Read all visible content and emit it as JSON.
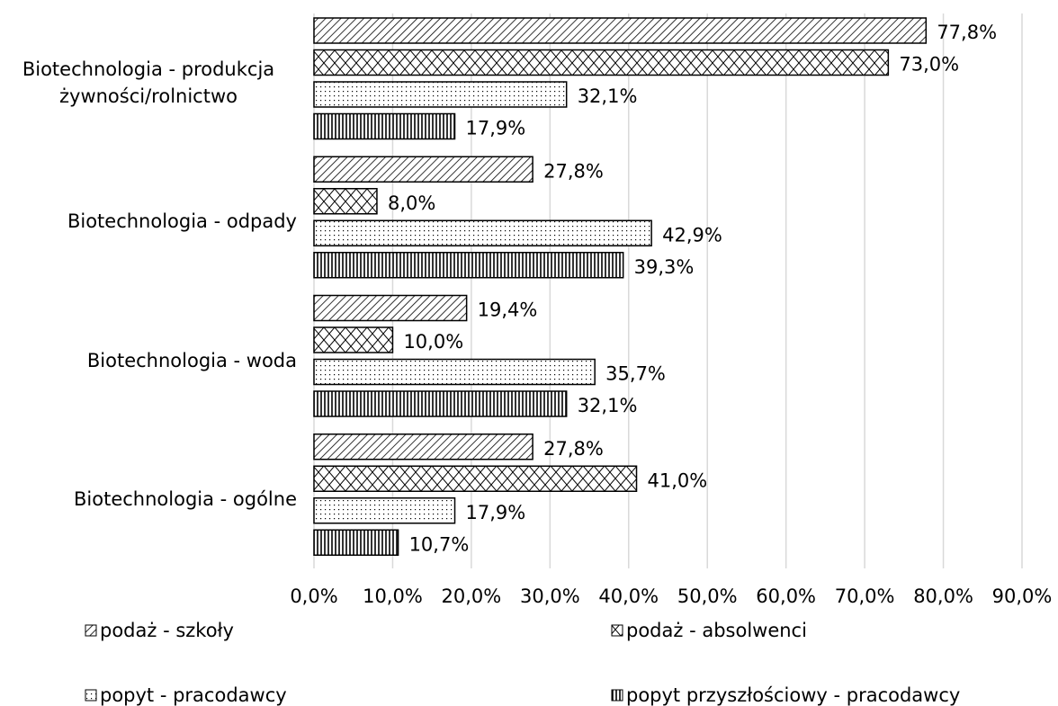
{
  "chart_data": {
    "type": "bar",
    "orientation": "horizontal",
    "categories": [
      "Biotechnologia - produkcja żywności/rolnictwo",
      "Biotechnologia - odpady",
      "Biotechnologia - woda",
      "Biotechnologia - ogólne"
    ],
    "series": [
      {
        "name": "podaż - szkoły",
        "color": "#000000",
        "pattern": "diagonal",
        "values": [
          77.8,
          27.8,
          19.4,
          27.8
        ],
        "value_labels": [
          "77,8%",
          "27,8%",
          "19,4%",
          "27,8%"
        ]
      },
      {
        "name": "podaż - absolwenci",
        "color": "#000000",
        "pattern": "zigzag",
        "values": [
          73.0,
          8.0,
          10.0,
          41.0
        ],
        "value_labels": [
          "73,0%",
          "8,0%",
          "10,0%",
          "41,0%"
        ]
      },
      {
        "name": "popyt - pracodawcy",
        "color": "#000000",
        "pattern": "dots",
        "values": [
          32.1,
          42.9,
          35.7,
          17.9
        ],
        "value_labels": [
          "32,1%",
          "42,9%",
          "35,7%",
          "17,9%"
        ]
      },
      {
        "name": "popyt przyszłościowy - pracodawcy",
        "color": "#000000",
        "pattern": "vertical",
        "values": [
          17.9,
          39.3,
          32.1,
          10.7
        ],
        "value_labels": [
          "17,9%",
          "39,3%",
          "32,1%",
          "10,7%"
        ]
      }
    ],
    "xlim": [
      0,
      90
    ],
    "xticks": [
      {
        "value": 0,
        "label": "0,0%"
      },
      {
        "value": 10,
        "label": "10,0%"
      },
      {
        "value": 20,
        "label": "20,0%"
      },
      {
        "value": 30,
        "label": "30,0%"
      },
      {
        "value": 40,
        "label": "40,0%"
      },
      {
        "value": 50,
        "label": "50,0%"
      },
      {
        "value": 60,
        "label": "60,0%"
      },
      {
        "value": 70,
        "label": "70,0%"
      },
      {
        "value": 80,
        "label": "80,0%"
      },
      {
        "value": 90,
        "label": "90,0%"
      }
    ],
    "grid": true,
    "legend": "bottom"
  }
}
